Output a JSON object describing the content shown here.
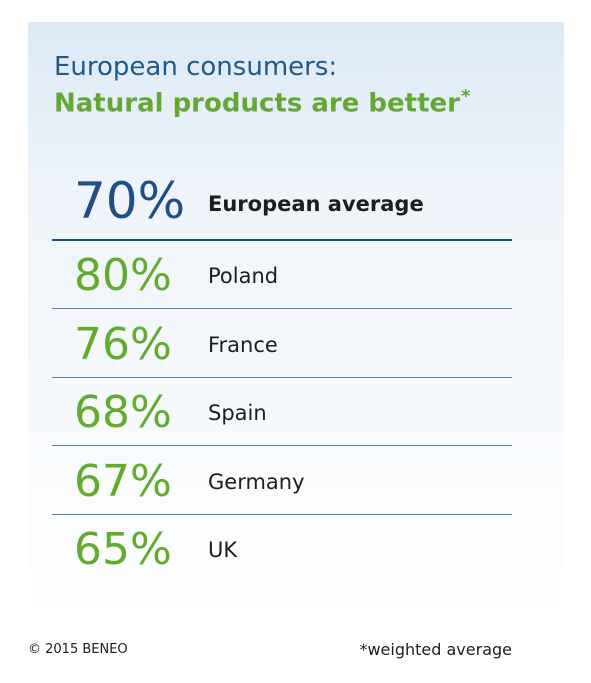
{
  "header": {
    "title_line1": "European consumers:",
    "title_line2": "Natural products are better",
    "title_marker": "*"
  },
  "footer": {
    "copyright": "© 2015 BENEO",
    "note": "*weighted average"
  },
  "colors": {
    "average": "#1f4f86",
    "country": "#62ab2f",
    "title_blue": "#1f5a8a",
    "title_green": "#63a833"
  },
  "chart_data": {
    "type": "table",
    "title": "European consumers: Natural products are better*",
    "rows": [
      {
        "value": "70%",
        "label": "European average"
      },
      {
        "value": "80%",
        "label": "Poland"
      },
      {
        "value": "76%",
        "label": "France"
      },
      {
        "value": "68%",
        "label": "Spain"
      },
      {
        "value": "67%",
        "label": "Germany"
      },
      {
        "value": "65%",
        "label": "UK"
      }
    ]
  }
}
